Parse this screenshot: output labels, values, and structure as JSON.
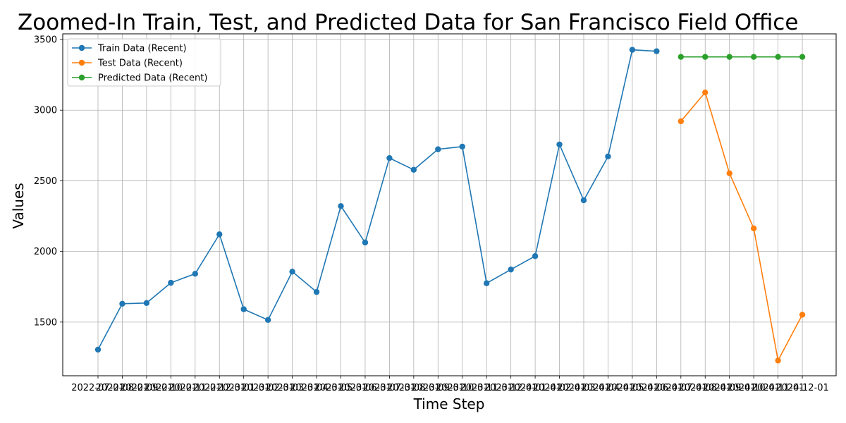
{
  "chart_data": {
    "type": "line",
    "title": "Zoomed-In Train, Test, and Predicted Data for San Francisco Field Office",
    "xlabel": "Time Step",
    "ylabel": "Values",
    "ylim": [
      1120,
      3540
    ],
    "yticks": [
      1500,
      2000,
      2500,
      3000,
      3500
    ],
    "grid": true,
    "legend_position": "top-left",
    "x": [
      "2022-07-01",
      "2022-08-01",
      "2022-09-01",
      "2022-10-01",
      "2022-11-01",
      "2022-12-01",
      "2023-01-01",
      "2023-02-01",
      "2023-03-01",
      "2023-04-01",
      "2023-05-01",
      "2023-06-01",
      "2023-07-01",
      "2023-08-01",
      "2023-09-01",
      "2023-10-01",
      "2023-11-01",
      "2023-12-01",
      "2024-01-01",
      "2024-02-01",
      "2024-03-01",
      "2024-04-01",
      "2024-05-01",
      "2024-06-01",
      "2024-07-01",
      "2024-08-01",
      "2024-09-01",
      "2024-10-01",
      "2024-11-01",
      "2024-12-01"
    ],
    "series": [
      {
        "name": "Train Data (Recent)",
        "color": "#1f77b4",
        "x": [
          "2022-07-01",
          "2022-08-01",
          "2022-09-01",
          "2022-10-01",
          "2022-11-01",
          "2022-12-01",
          "2023-01-01",
          "2023-02-01",
          "2023-03-01",
          "2023-04-01",
          "2023-05-01",
          "2023-06-01",
          "2023-07-01",
          "2023-08-01",
          "2023-09-01",
          "2023-10-01",
          "2023-11-01",
          "2023-12-01",
          "2024-01-01",
          "2024-02-01",
          "2024-03-01",
          "2024-04-01",
          "2024-05-01",
          "2024-06-01"
        ],
        "values": [
          1305,
          1630,
          1635,
          1778,
          1842,
          2121,
          1591,
          1515,
          1857,
          1713,
          2321,
          2063,
          2661,
          2578,
          2723,
          2742,
          1775,
          1872,
          1967,
          2757,
          2362,
          2672,
          3427,
          3417
        ]
      },
      {
        "name": "Test Data (Recent)",
        "color": "#ff7f0e",
        "x": [
          "2024-07-01",
          "2024-08-01",
          "2024-09-01",
          "2024-10-01",
          "2024-11-01",
          "2024-12-01"
        ],
        "values": [
          2921,
          3125,
          2553,
          2163,
          1228,
          1552
        ]
      },
      {
        "name": "Predicted Data (Recent)",
        "color": "#2ca02c",
        "x": [
          "2024-07-01",
          "2024-08-01",
          "2024-09-01",
          "2024-10-01",
          "2024-11-01",
          "2024-12-01"
        ],
        "values": [
          3377,
          3377,
          3377,
          3377,
          3377,
          3377
        ]
      }
    ]
  }
}
